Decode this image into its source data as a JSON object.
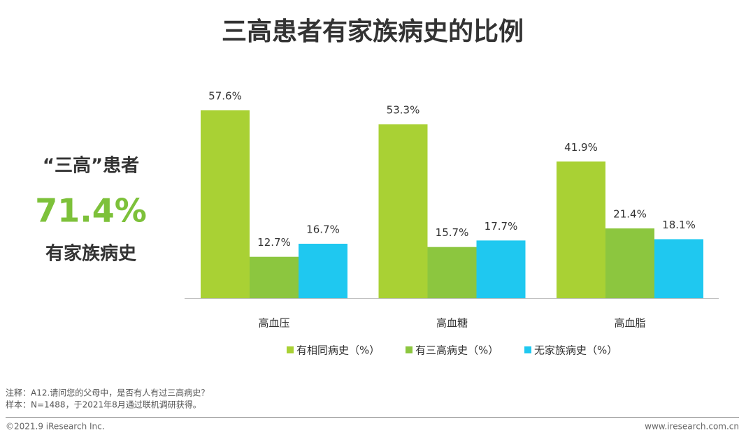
{
  "chart_data": {
    "type": "bar",
    "title": "三高患者有家族病史的比例",
    "categories": [
      "高血压",
      "高血糖",
      "高血脂"
    ],
    "series": [
      {
        "name": "有相同病史（%）",
        "color": "#a9d134",
        "values": [
          57.6,
          53.3,
          41.9
        ],
        "value_labels": [
          "57.6%",
          "53.3%",
          "41.9%"
        ]
      },
      {
        "name": "有三高病史（%）",
        "color": "#8cc63f",
        "values": [
          12.7,
          15.7,
          21.4
        ],
        "value_labels": [
          "12.7%",
          "15.7%",
          "21.4%"
        ]
      },
      {
        "name": "无家族病史（%）",
        "color": "#1fc8f0",
        "values": [
          16.7,
          17.7,
          18.1
        ],
        "value_labels": [
          "16.7%",
          "17.7%",
          "18.1%"
        ]
      }
    ],
    "legend": "bottom"
  },
  "highlight": {
    "label": "“三高”患者",
    "value": "71.4%",
    "caption": "有家族病史"
  },
  "notes": [
    "注释：A12.请问您的父母中，是否有人有过三高病史？",
    "样本：N=1488，于2021年8月通过联机调研获得。"
  ],
  "footer": {
    "left": "©2021.9 iResearch Inc.",
    "right": "www.iresearch.com.cn"
  }
}
